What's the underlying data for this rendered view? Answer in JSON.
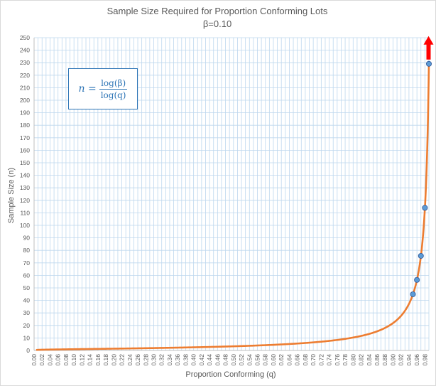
{
  "chart_data": {
    "type": "line",
    "title": "Sample Size Required for Proportion Conforming Lots",
    "subtitle": "β=0.10",
    "xlabel": "Proportion Conforming  (q)",
    "ylabel": "Sample Size  (n)",
    "beta": 0.1,
    "xlim": [
      0.0,
      0.99
    ],
    "ylim": [
      0,
      250
    ],
    "y_step": 10,
    "x_step": 0.02,
    "grid": true,
    "legend": "none",
    "series": [
      {
        "function": "log(beta)/log(q)",
        "color": "#ed7d31"
      }
    ],
    "highlighted_points": [
      {
        "x": 0.95,
        "y": 44.9
      },
      {
        "x": 0.96,
        "y": 56.4
      },
      {
        "x": 0.97,
        "y": 75.6
      },
      {
        "x": 0.98,
        "y": 114.0
      },
      {
        "x": 0.99,
        "y": 229.1
      }
    ],
    "point_color": "#5b9bd5",
    "arrow_color": "#ff0000",
    "annotation": {
      "formula_lhs": "n =",
      "formula_lhs_var": "n",
      "formula_numerator": "log(β)",
      "formula_denominator": "log(q)"
    }
  }
}
